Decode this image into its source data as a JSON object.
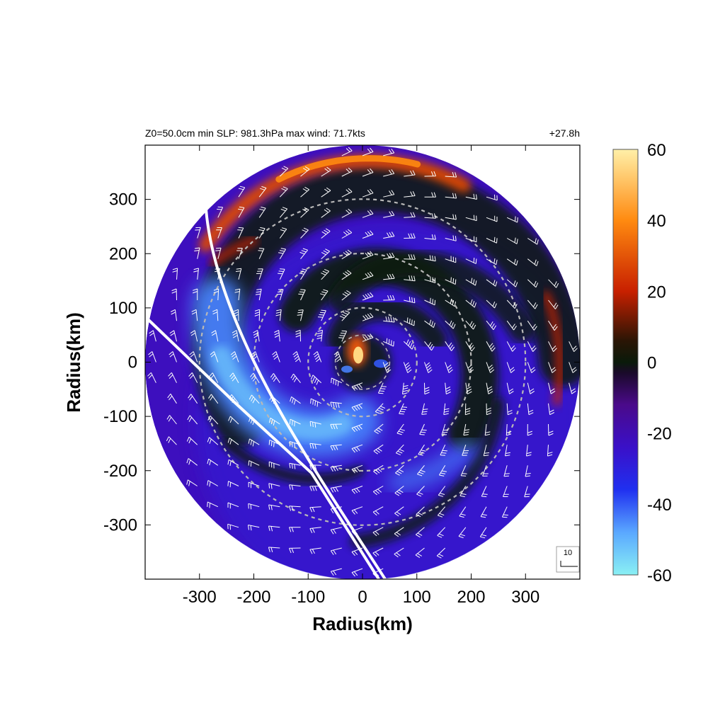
{
  "header": {
    "left": "Z0=50.0cm  min SLP: 981.3hPa   max wind: 71.7kts",
    "right": "+27.8h"
  },
  "chart_data": {
    "type": "heatmap",
    "title": "Z0=50.0cm  min SLP: 981.3hPa   max wind: 71.7kts",
    "subtitle": "+27.8h",
    "xlabel": "Radius(km)",
    "ylabel": "Radius(km)",
    "xlim": [
      -400,
      400
    ],
    "ylim": [
      -400,
      400
    ],
    "xticks": [
      -300,
      -200,
      -100,
      0,
      100,
      200,
      300
    ],
    "yticks": [
      300,
      200,
      100,
      0,
      -100,
      -200,
      -300
    ],
    "xtick_labels": [
      "-300",
      "-200",
      "-100",
      "0",
      "100",
      "200",
      "300"
    ],
    "ytick_labels": [
      "300",
      "200",
      "100",
      "0",
      "-100",
      "-200",
      "-300"
    ],
    "domain_radius_km": 400,
    "range_rings_km": [
      100,
      200,
      300
    ],
    "colorbar": {
      "min": -60,
      "max": 60,
      "ticks": [
        60,
        40,
        20,
        0,
        -20,
        -40,
        -60
      ],
      "tick_labels": [
        "60",
        "40",
        "20",
        "0",
        "-20",
        "-40",
        "-60"
      ],
      "stops": [
        {
          "value": -60,
          "color": "#8af0f4"
        },
        {
          "value": -48,
          "color": "#5aa8ff"
        },
        {
          "value": -36,
          "color": "#2030f0"
        },
        {
          "value": -24,
          "color": "#3a10c8"
        },
        {
          "value": -12,
          "color": "#4a0a8a"
        },
        {
          "value": -3,
          "color": "#1a0a2a"
        },
        {
          "value": 0,
          "color": "#0a1a0a"
        },
        {
          "value": 6,
          "color": "#2a1505"
        },
        {
          "value": 20,
          "color": "#c82000"
        },
        {
          "value": 40,
          "color": "#ff8a10"
        },
        {
          "value": 60,
          "color": "#fff0a8"
        }
      ]
    },
    "field_features": [
      {
        "kind": "inflow_band",
        "value": -45,
        "description": "light blue spiral from west to south"
      },
      {
        "kind": "outflow_band",
        "value": 30,
        "description": "orange arc along northern edge"
      },
      {
        "kind": "core",
        "value": 50,
        "description": "bright core at center"
      }
    ],
    "overlay_lines": 2,
    "wind_barb_key": {
      "label": "10",
      "speed_kts": 10
    }
  },
  "colors": {
    "ring": "#b8b8b8",
    "barb": "#ffffff",
    "overlay_line": "#ffffff",
    "frame": "#000000"
  }
}
